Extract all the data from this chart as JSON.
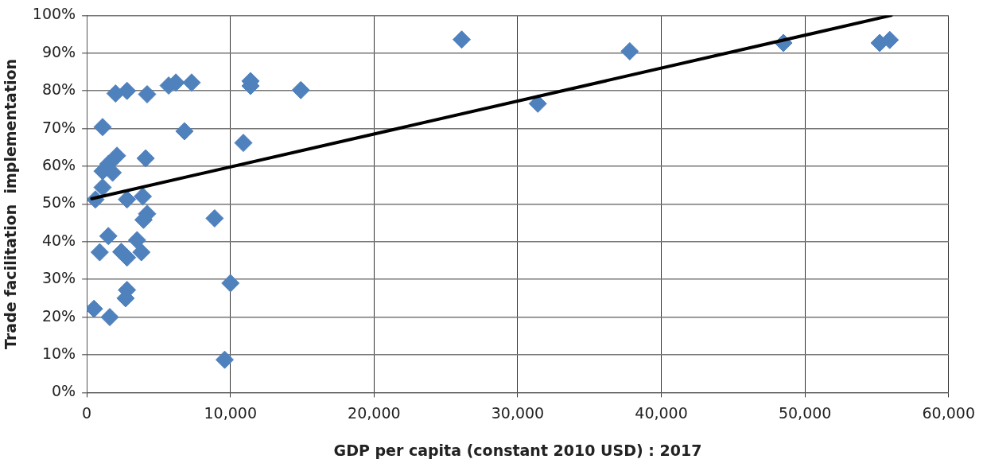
{
  "chart_data": {
    "type": "scatter",
    "xlabel": "GDP per capita (constant 2010 USD) : 2017",
    "ylabel": "Trade facilitation  implementation",
    "xlim": [
      0,
      60000
    ],
    "xticks": [
      {
        "value": 0,
        "label": "0"
      },
      {
        "value": 10000,
        "label": "10,000"
      },
      {
        "value": 20000,
        "label": "20,000"
      },
      {
        "value": 30000,
        "label": "30,000"
      },
      {
        "value": 40000,
        "label": "40,000"
      },
      {
        "value": 50000,
        "label": "50,000"
      },
      {
        "value": 60000,
        "label": "60,000"
      }
    ],
    "ylim": [
      0,
      100
    ],
    "yticks": [
      {
        "value": 0,
        "label": "0%"
      },
      {
        "value": 10,
        "label": "10%"
      },
      {
        "value": 20,
        "label": "20%"
      },
      {
        "value": 30,
        "label": "30%"
      },
      {
        "value": 40,
        "label": "40%"
      },
      {
        "value": 50,
        "label": "50%"
      },
      {
        "value": 60,
        "label": "60%"
      },
      {
        "value": 70,
        "label": "70%"
      },
      {
        "value": 80,
        "label": "80%"
      },
      {
        "value": 90,
        "label": "90%"
      },
      {
        "value": 100,
        "label": "100%"
      }
    ],
    "grid": true,
    "legend": false,
    "marker": "diamond",
    "series": [
      {
        "type": "scatter",
        "color": "#4f81bd",
        "x": [
          26100,
          31400,
          37800,
          48500,
          55200,
          55900,
          2000,
          2800,
          4200,
          5700,
          6200,
          7300,
          11400,
          11400,
          14900,
          1100,
          6800,
          10900,
          2100,
          1500,
          4100,
          1100,
          1800,
          1100,
          600,
          2800,
          3900,
          4200,
          3950,
          8900,
          1500,
          900,
          2400,
          2800,
          3500,
          3800,
          10000,
          2800,
          2700,
          500,
          1600,
          9600
        ],
        "values": [
          93.6,
          76.6,
          90.5,
          92.7,
          92.7,
          93.5,
          79.3,
          80.0,
          79.1,
          81.4,
          82.2,
          82.2,
          82.6,
          81.3,
          80.2,
          70.4,
          69.3,
          66.2,
          62.8,
          60.6,
          62.1,
          58.7,
          58.3,
          54.4,
          51.2,
          51.2,
          52.0,
          47.4,
          45.8,
          46.2,
          41.5,
          37.2,
          37.3,
          35.8,
          40.4,
          37.2,
          29.0,
          27.2,
          25.0,
          22.2,
          20.0,
          8.7
        ]
      },
      {
        "type": "line",
        "color": "#000000",
        "marker": "none",
        "x": [
          350,
          56000
        ],
        "values": [
          51.4,
          100
        ]
      }
    ]
  }
}
